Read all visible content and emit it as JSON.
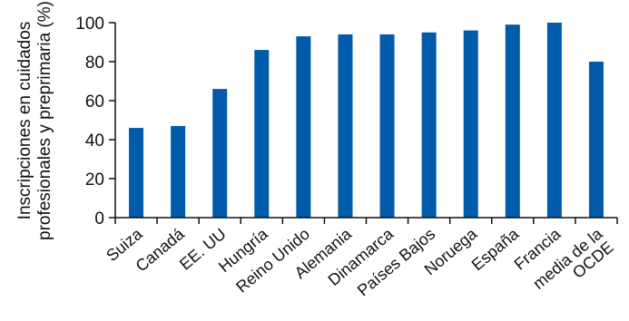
{
  "chart_data": {
    "type": "bar",
    "ylabel_lines": [
      "Inscripciones en cuidados",
      "profesionales y preprimaria (%)"
    ],
    "xlabel": "",
    "categories": [
      "Suiza",
      "Canadá",
      "EE. UU",
      "Hungría",
      "Reino Unido",
      "Alemania",
      "Dinamarca",
      "Países Bajos",
      "Noruega",
      "España",
      "Francia",
      "media de la|OCDE"
    ],
    "values": [
      46,
      47,
      66,
      86,
      93,
      94,
      94,
      95,
      96,
      99,
      100,
      80
    ],
    "ylim": [
      0,
      100
    ],
    "yticks": [
      0,
      20,
      40,
      60,
      80,
      100
    ],
    "grid": false,
    "bar_color": "#005baa",
    "axis_color": "#111111"
  }
}
